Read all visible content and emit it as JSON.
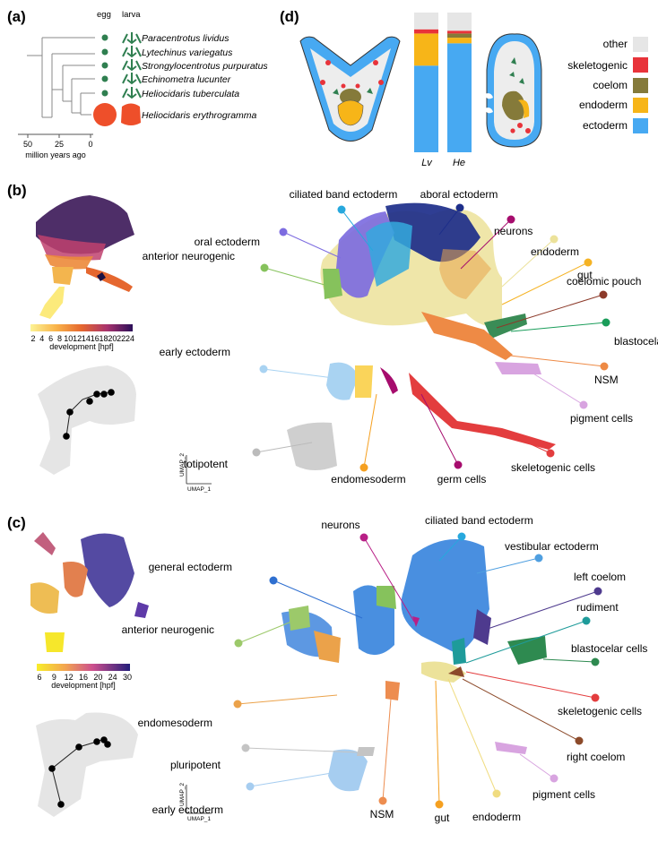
{
  "panel_labels": {
    "a": "(a)",
    "b": "(b)",
    "c": "(c)",
    "d": "(d)"
  },
  "panel_a": {
    "col_egg": "egg",
    "col_larva": "larva",
    "species": [
      "Paracentrotus lividus",
      "Lytechinus variegatus",
      "Strongylocentrotus purpuratus",
      "Echinometra lucunter",
      "Heliocidaris tuberculata",
      "Heliocidaris erythrogramma"
    ],
    "axis_ticks": [
      "50",
      "25",
      "0"
    ],
    "axis_label": "million years ago"
  },
  "panel_d": {
    "bar_labels": [
      "Lv",
      "He"
    ],
    "legend": [
      {
        "label": "other",
        "color": "#e6e6e6"
      },
      {
        "label": "skeletogenic",
        "color": "#e8333a"
      },
      {
        "label": "coelom",
        "color": "#857a3a"
      },
      {
        "label": "endoderm",
        "color": "#f7b518"
      },
      {
        "label": "ectoderm",
        "color": "#47a9f2"
      }
    ],
    "chart_data": {
      "type": "bar",
      "stacked": true,
      "categories": [
        "Lv",
        "He"
      ],
      "series": [
        {
          "name": "ectoderm",
          "values": [
            0.62,
            0.78
          ]
        },
        {
          "name": "endoderm",
          "values": [
            0.23,
            0.04
          ]
        },
        {
          "name": "coelom",
          "values": [
            0.0,
            0.03
          ]
        },
        {
          "name": "skeletogenic",
          "values": [
            0.03,
            0.02
          ]
        },
        {
          "name": "other",
          "values": [
            0.12,
            0.13
          ]
        }
      ]
    }
  },
  "panel_b": {
    "colorbar_ticks": [
      "2",
      "4",
      "6",
      "8",
      "10",
      "12",
      "14",
      "16",
      "18",
      "20",
      "22",
      "24"
    ],
    "colorbar_label": "development [hpf]",
    "umap_y": "UMAP_2",
    "umap_x": "UMAP_1",
    "clusters": [
      "ciliated band ectoderm",
      "aboral ectoderm",
      "neurons",
      "oral ectoderm",
      "endoderm",
      "anterior neurogenic",
      "gut",
      "coelomic pouch",
      "blastocelar cells",
      "early ectoderm",
      "NSM",
      "pigment cells",
      "totipotent",
      "skeletogenic cells",
      "germ cells",
      "endomesoderm"
    ]
  },
  "panel_c": {
    "colorbar_ticks": [
      "6",
      "9",
      "12",
      "16",
      "20",
      "24",
      "30"
    ],
    "colorbar_label": "development [hpf]",
    "umap_y": "UMAP_2",
    "umap_x": "UMAP_1",
    "clusters": [
      "neurons",
      "ciliated band ectoderm",
      "vestibular ectoderm",
      "general ectoderm",
      "left coelom",
      "rudiment",
      "anterior neurogenic",
      "blastocelar cells",
      "skeletogenic cells",
      "endomesoderm",
      "right coelom",
      "pluripotent",
      "pigment cells",
      "early ectoderm",
      "NSM",
      "gut",
      "endoderm"
    ]
  }
}
